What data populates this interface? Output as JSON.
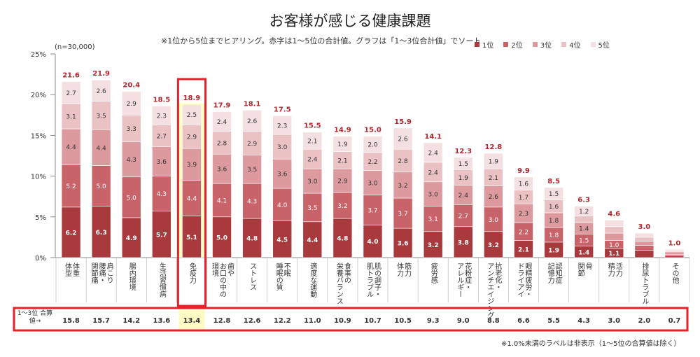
{
  "title": "お客様が感じる健康課題",
  "subtitle": "※1位から5位までヒアリング。赤字は1～5位の合計値。グラフは「1～3位合計値」でソート",
  "sample": "(n=30,000)",
  "footnote": "※1.0%未満のラベルは非表示（1～5位の合算値は除く）",
  "sum_row_label": "1～3位 合算値→",
  "colors": {
    "rank1": "#a83a3e",
    "rank2": "#c9636a",
    "rank3": "#dc9a9e",
    "rank4": "#ebc2c4",
    "rank5": "#f5e0e1",
    "total_label": "#b0272e",
    "highlight_border": "#e8212b",
    "highlight_fill": "#fffbc4"
  },
  "chart_data": {
    "type": "bar",
    "stacked": true,
    "title": "お客様が感じる健康課題",
    "ylim": [
      0,
      25
    ],
    "yticks": [
      "0%",
      "5%",
      "10%",
      "15%",
      "20%",
      "25%"
    ],
    "legend_position": "top-right",
    "highlight_index": 4,
    "categories": [
      [
        "体重",
        "体型"
      ],
      [
        "肩こり",
        "腰痛・",
        "関節痛"
      ],
      [
        "腸内環境"
      ],
      [
        "生活習慣病"
      ],
      [
        "免疫力"
      ],
      [
        "歯や",
        "お口の中の",
        "環境"
      ],
      [
        "ストレス"
      ],
      [
        "不眠",
        "睡眠の質"
      ],
      [
        "適度な運動"
      ],
      [
        "食事の",
        "栄養バランス"
      ],
      [
        "肌の調子・",
        "肌トラブル"
      ],
      [
        "筋力",
        "体力"
      ],
      [
        "疲労感"
      ],
      [
        "花粉症・",
        "アレルギー"
      ],
      [
        "抗老化・",
        "アンチエイジング"
      ],
      [
        "眼精疲労・",
        "ドライアイ"
      ],
      [
        "認知症",
        "記憶力"
      ],
      [
        "骨",
        "関節"
      ],
      [
        "活力",
        "精力"
      ],
      [
        "排尿トラブル"
      ],
      [
        "その他"
      ]
    ],
    "series": [
      {
        "name": "1位",
        "values": [
          6.2,
          6.3,
          4.9,
          5.7,
          5.1,
          5.0,
          4.8,
          4.5,
          4.4,
          4.8,
          4.0,
          3.6,
          3.2,
          3.8,
          3.2,
          2.1,
          1.9,
          1.4,
          1.1,
          0.9,
          0.2
        ]
      },
      {
        "name": "2位",
        "values": [
          5.2,
          5.0,
          5.0,
          4.3,
          4.4,
          4.1,
          4.3,
          4.0,
          3.5,
          3.2,
          3.7,
          3.7,
          3.1,
          2.7,
          3.0,
          2.2,
          1.8,
          1.5,
          1.0,
          0.6,
          0.2
        ]
      },
      {
        "name": "3位",
        "values": [
          4.4,
          4.4,
          4.3,
          3.6,
          3.9,
          3.6,
          3.5,
          3.6,
          3.0,
          2.9,
          3.0,
          3.2,
          3.0,
          2.4,
          2.6,
          2.3,
          1.8,
          1.4,
          0.9,
          0.5,
          0.3
        ]
      },
      {
        "name": "4位",
        "values": [
          3.1,
          3.5,
          3.3,
          2.7,
          2.9,
          2.8,
          2.9,
          3.0,
          2.4,
          2.1,
          2.2,
          2.8,
          2.4,
          1.9,
          2.1,
          1.7,
          1.6,
          0.8,
          0.8,
          0.5,
          0.1
        ]
      },
      {
        "name": "5位",
        "values": [
          2.7,
          2.6,
          2.9,
          2.3,
          2.5,
          2.4,
          2.6,
          2.3,
          2.1,
          1.9,
          2.0,
          2.6,
          2.4,
          1.5,
          1.9,
          1.6,
          1.5,
          1.2,
          0.8,
          0.5,
          0.2
        ]
      }
    ],
    "totals": [
      21.6,
      21.9,
      20.4,
      18.5,
      18.9,
      17.9,
      18.1,
      17.5,
      15.5,
      14.9,
      15.0,
      15.9,
      14.1,
      12.3,
      12.8,
      9.9,
      8.5,
      6.3,
      4.6,
      3.0,
      1.0
    ],
    "top3_sums": [
      15.8,
      15.7,
      14.2,
      13.6,
      13.4,
      12.8,
      12.6,
      12.2,
      11.0,
      10.9,
      10.7,
      10.5,
      9.3,
      9.0,
      8.8,
      6.6,
      5.5,
      4.3,
      3.0,
      2.0,
      0.7
    ],
    "label_threshold": 1.0
  }
}
